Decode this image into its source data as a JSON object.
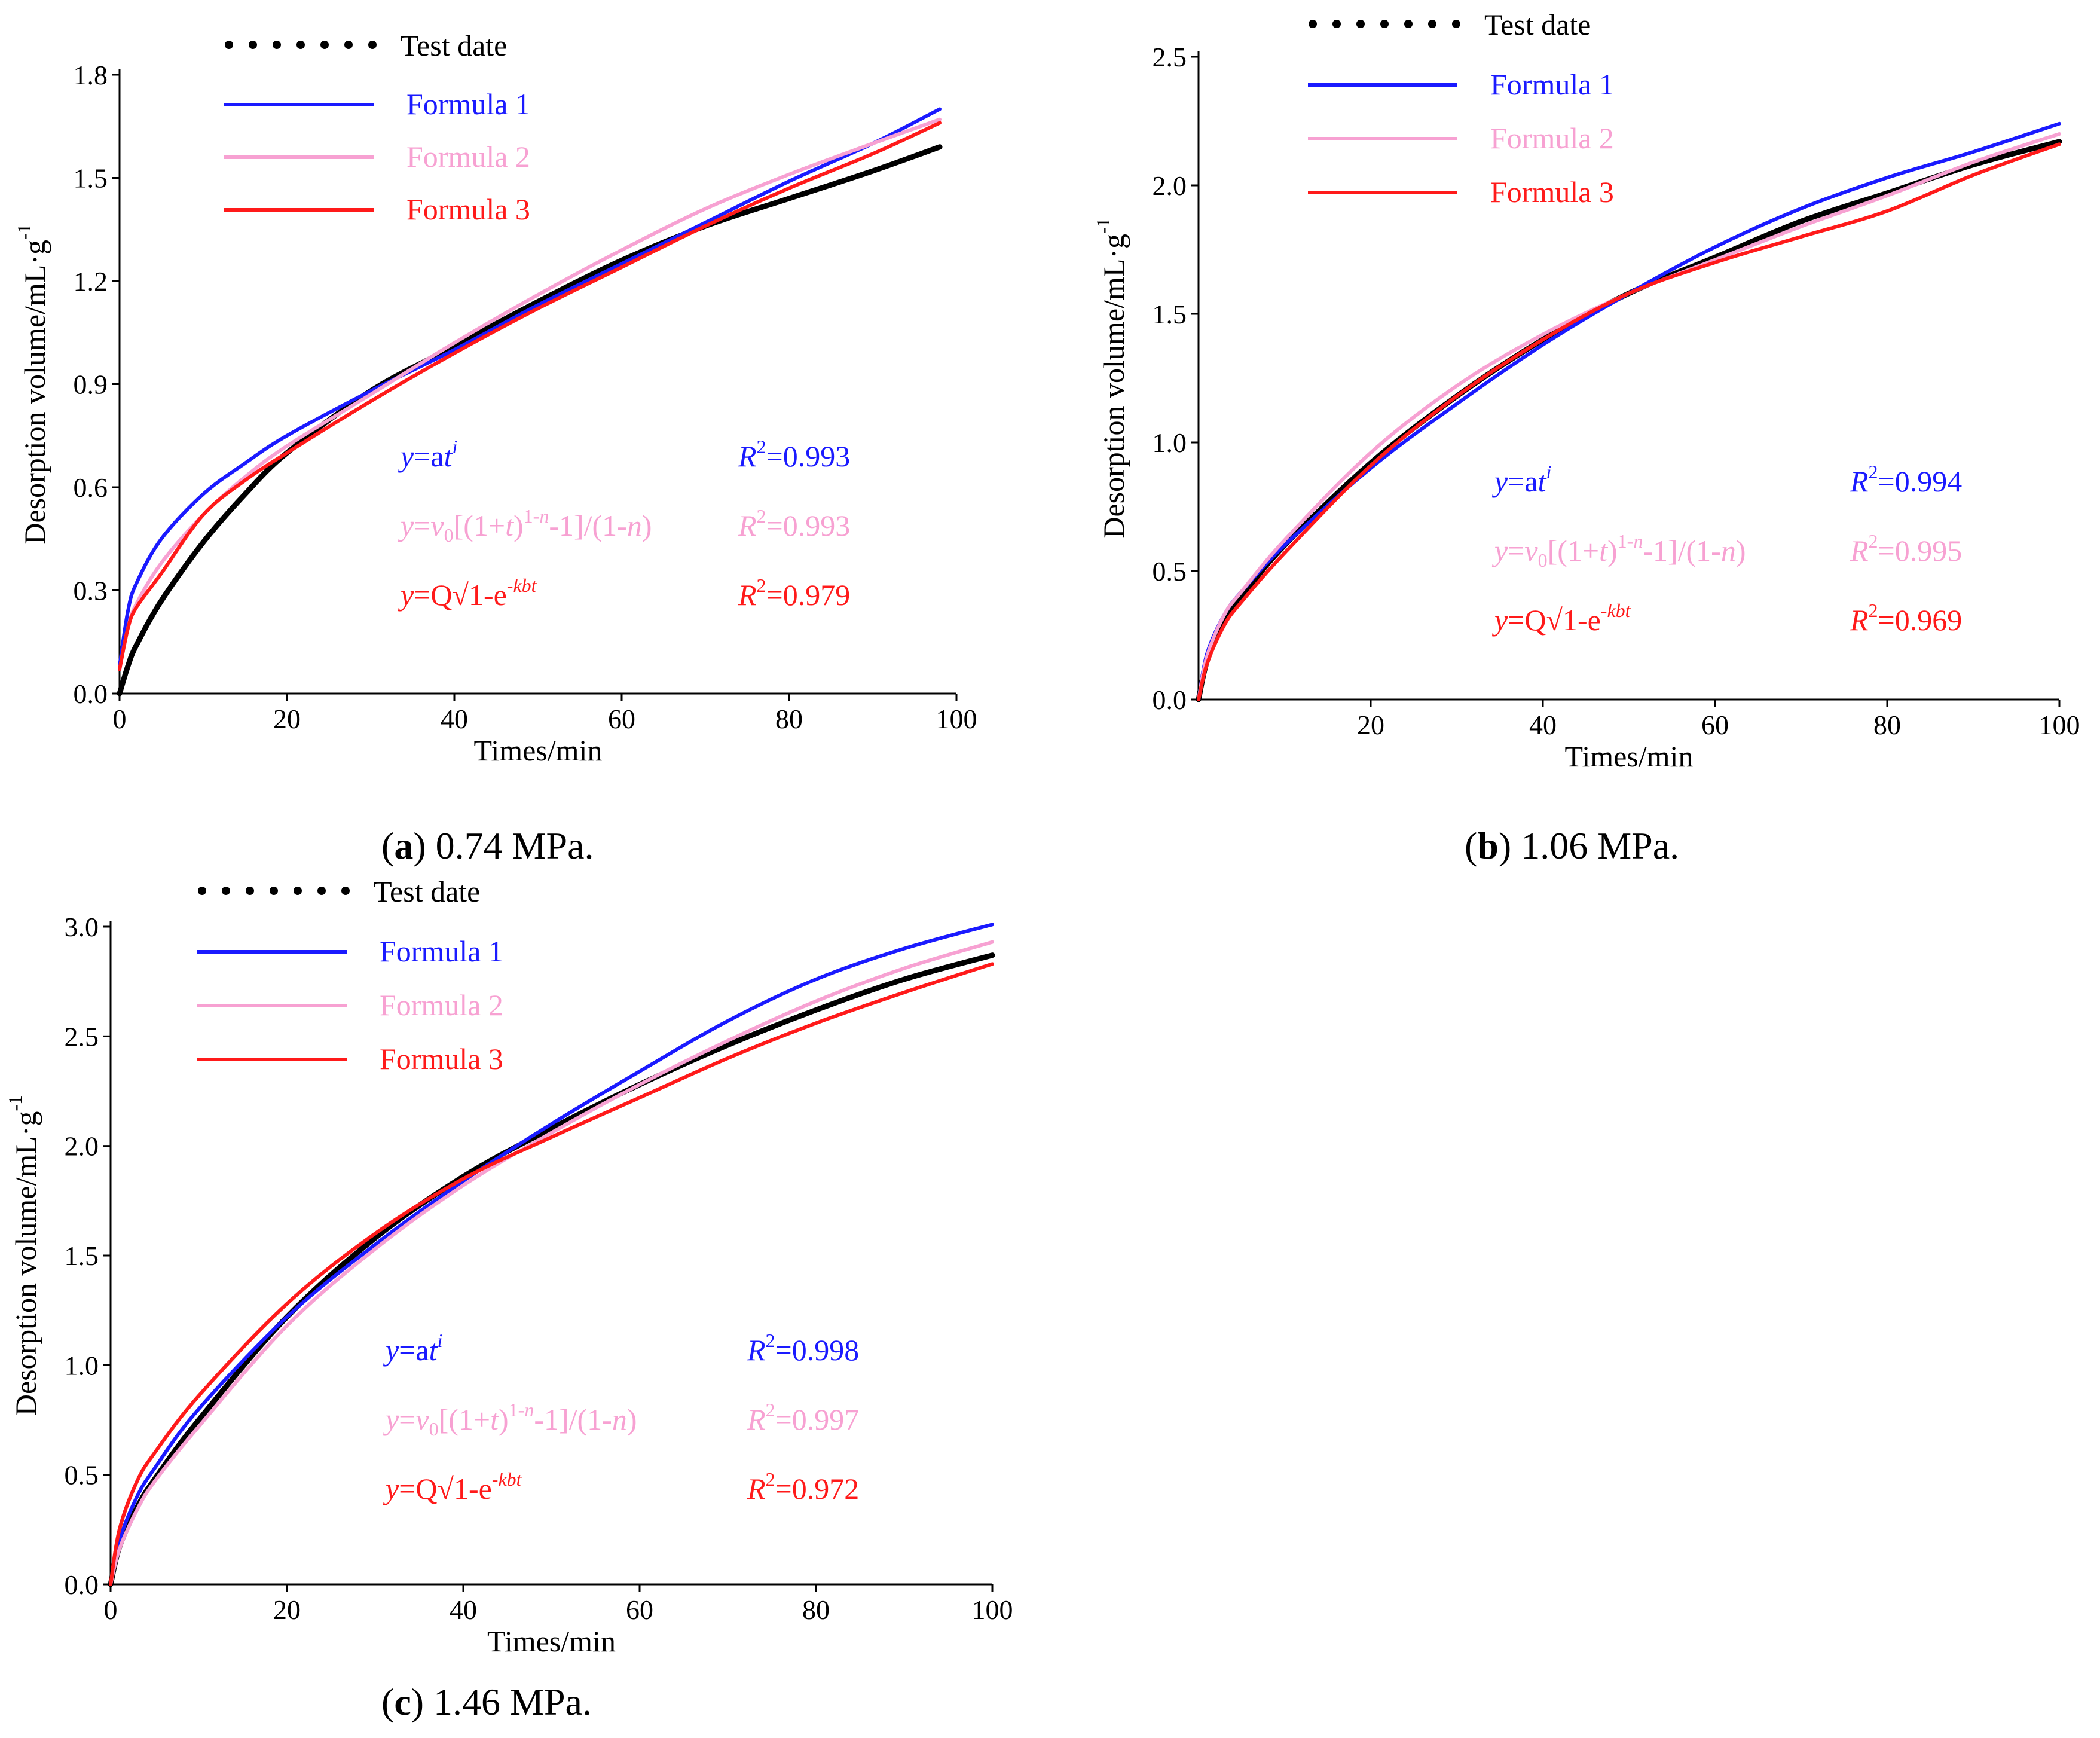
{
  "captions": {
    "a": {
      "letter": "a",
      "text": " 0.74 MPa."
    },
    "b": {
      "letter": "b",
      "text": " 1.06 MPa."
    },
    "c": {
      "letter": "c",
      "text": " 1.46 MPa."
    }
  },
  "colors": {
    "test": "#000000",
    "f1": "#1a1aff",
    "f2": "#f7a1d2",
    "f3": "#ff1a1a"
  },
  "chart_data": [
    {
      "id": "a",
      "type": "line",
      "xlabel": "Times/min",
      "ylabel": "Desorption volume/mL·g",
      "ylabel_sup": "-1",
      "xlim": [
        0,
        100
      ],
      "ylim": [
        0,
        1.8
      ],
      "xticks": [
        "0",
        "20",
        "40",
        "60",
        "80",
        "100"
      ],
      "yticks": [
        "0.0",
        "0.3",
        "0.6",
        "0.9",
        "1.2",
        "1.5",
        "1.8"
      ],
      "legend": [
        "Test date",
        "Formula  1",
        "Formula  2",
        "Formula  3"
      ],
      "equations": [
        {
          "formula": "y=at^i",
          "r2": "R²=0.993"
        },
        {
          "formula": "y=v0[(1+t)^(1-n)-1]/(1-n)",
          "r2": "R²=0.993"
        },
        {
          "formula": "y=Q√1-e^-kbt",
          "r2": "R²=0.979"
        }
      ],
      "x": [
        0,
        1,
        2,
        5,
        10,
        15,
        20,
        30,
        40,
        50,
        60,
        70,
        80,
        90,
        98
      ],
      "series": [
        {
          "name": "Test date",
          "values": [
            0.0,
            0.08,
            0.14,
            0.27,
            0.44,
            0.58,
            0.7,
            0.88,
            1.01,
            1.14,
            1.26,
            1.36,
            1.44,
            1.52,
            1.59
          ]
        },
        {
          "name": "Formula  1",
          "values": [
            0.08,
            0.24,
            0.32,
            0.45,
            0.58,
            0.67,
            0.75,
            0.88,
            1.0,
            1.13,
            1.25,
            1.37,
            1.49,
            1.6,
            1.7
          ]
        },
        {
          "name": "Formula  2",
          "values": [
            0.07,
            0.19,
            0.26,
            0.38,
            0.52,
            0.63,
            0.72,
            0.87,
            1.02,
            1.16,
            1.29,
            1.41,
            1.51,
            1.6,
            1.67
          ]
        },
        {
          "name": "Formula  3",
          "values": [
            0.07,
            0.19,
            0.25,
            0.35,
            0.52,
            0.62,
            0.7,
            0.85,
            0.99,
            1.12,
            1.24,
            1.36,
            1.47,
            1.57,
            1.66
          ]
        }
      ]
    },
    {
      "id": "b",
      "type": "line",
      "xlabel": "Times/min",
      "ylabel": "Desorption volume/mL·g",
      "ylabel_sup": "-1",
      "xlim": [
        0,
        100
      ],
      "ylim": [
        0,
        2.5
      ],
      "xticks": [
        "20",
        "40",
        "60",
        "80",
        "100"
      ],
      "yticks": [
        "0.0",
        "0.5",
        "1.0",
        "1.5",
        "2.0",
        "2.5"
      ],
      "legend": [
        "Test date",
        "Formula  1",
        "Formula  2",
        "Formula  3"
      ],
      "equations": [
        {
          "formula": "y=at^i",
          "r2": "R²=0.994"
        },
        {
          "formula": "y=v0[(1+t)^(1-n)-1]/(1-n)",
          "r2": "R²=0.995"
        },
        {
          "formula": "y=Q√1-e^-kbt",
          "r2": "R²=0.969"
        }
      ],
      "x": [
        0,
        1,
        3,
        5,
        10,
        20,
        30,
        40,
        50,
        60,
        70,
        80,
        90,
        100
      ],
      "series": [
        {
          "name": "Test date",
          "values": [
            0.0,
            0.15,
            0.3,
            0.4,
            0.6,
            0.92,
            1.18,
            1.4,
            1.58,
            1.72,
            1.86,
            1.97,
            2.08,
            2.17
          ]
        },
        {
          "name": "Formula  1",
          "values": [
            0.0,
            0.18,
            0.33,
            0.42,
            0.6,
            0.9,
            1.15,
            1.38,
            1.58,
            1.76,
            1.91,
            2.03,
            2.13,
            2.24
          ]
        },
        {
          "name": "Formula  2",
          "values": [
            0.0,
            0.17,
            0.33,
            0.42,
            0.62,
            0.96,
            1.22,
            1.42,
            1.58,
            1.71,
            1.84,
            1.96,
            2.09,
            2.2
          ]
        },
        {
          "name": "Formula  3",
          "values": [
            0.0,
            0.14,
            0.29,
            0.38,
            0.57,
            0.91,
            1.18,
            1.4,
            1.58,
            1.7,
            1.8,
            1.9,
            2.04,
            2.16
          ]
        }
      ]
    },
    {
      "id": "c",
      "type": "line",
      "xlabel": "Times/min",
      "ylabel": "Desorption volume/mL·g",
      "ylabel_sup": "-1",
      "xlim": [
        0,
        100
      ],
      "ylim": [
        0,
        3.0
      ],
      "xticks": [
        "0",
        "20",
        "40",
        "60",
        "80",
        "100"
      ],
      "yticks": [
        "0.0",
        "0.5",
        "1.0",
        "1.5",
        "2.0",
        "2.5",
        "3.0"
      ],
      "legend": [
        "Test date",
        "Formula  1",
        "Formula  2",
        "Formula  3"
      ],
      "equations": [
        {
          "formula": "y=at^i",
          "r2": "R²=0.998"
        },
        {
          "formula": "y=v0[(1+t)^(1-n)-1]/(1-n)",
          "r2": "R²=0.997"
        },
        {
          "formula": "y=Q√1-e^-kbt",
          "r2": "R²=0.972"
        }
      ],
      "x": [
        0,
        1,
        3,
        5,
        10,
        20,
        30,
        40,
        50,
        60,
        70,
        80,
        90,
        100
      ],
      "series": [
        {
          "name": "Test date",
          "values": [
            0.0,
            0.17,
            0.35,
            0.48,
            0.75,
            1.22,
            1.58,
            1.86,
            2.08,
            2.28,
            2.46,
            2.62,
            2.76,
            2.87
          ]
        },
        {
          "name": "Formula  1",
          "values": [
            0.0,
            0.2,
            0.4,
            0.53,
            0.8,
            1.22,
            1.55,
            1.84,
            2.1,
            2.34,
            2.57,
            2.76,
            2.9,
            3.01
          ]
        },
        {
          "name": "Formula  2",
          "values": [
            0.0,
            0.16,
            0.34,
            0.47,
            0.72,
            1.18,
            1.53,
            1.82,
            2.06,
            2.28,
            2.48,
            2.66,
            2.81,
            2.93
          ]
        },
        {
          "name": "Formula  3",
          "values": [
            0.0,
            0.25,
            0.47,
            0.6,
            0.86,
            1.28,
            1.6,
            1.85,
            2.04,
            2.22,
            2.4,
            2.56,
            2.7,
            2.83
          ]
        }
      ]
    }
  ]
}
